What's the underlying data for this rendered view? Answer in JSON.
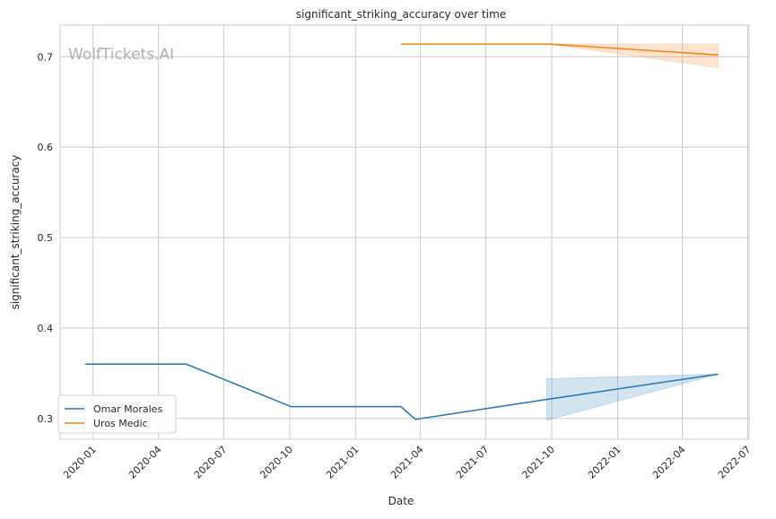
{
  "chart_data": {
    "type": "line",
    "title": "significant_striking_accuracy over time",
    "xlabel": "Date",
    "ylabel": "significant_striking_accuracy",
    "watermark": "WolfTickets.AI",
    "xlim": [
      "2019-11-16",
      "2022-07-03"
    ],
    "ylim": [
      0.277,
      0.735
    ],
    "x_ticks": [
      "2020-01",
      "2020-04",
      "2020-07",
      "2020-10",
      "2021-01",
      "2021-04",
      "2021-07",
      "2021-10",
      "2022-01",
      "2022-04",
      "2022-07"
    ],
    "y_ticks": [
      "0.3",
      "0.4",
      "0.5",
      "0.6",
      "0.7"
    ],
    "grid": true,
    "legend_position": "bottom-left",
    "series": [
      {
        "name": "Omar Morales",
        "color": "#1f77b4",
        "points": [
          {
            "x": "2019-12-21",
            "y": 0.36
          },
          {
            "x": "2020-05-10",
            "y": 0.36
          },
          {
            "x": "2020-10-03",
            "y": 0.313
          },
          {
            "x": "2021-03-05",
            "y": 0.313
          },
          {
            "x": "2021-03-25",
            "y": 0.299
          },
          {
            "x": "2021-09-24",
            "y": 0.321,
            "ci": [
              0.298,
              0.344
            ]
          },
          {
            "x": "2022-05-21",
            "y": 0.349,
            "ci": [
              0.349,
              0.349
            ]
          }
        ]
      },
      {
        "name": "Uros Medic",
        "color": "#ff7f0e",
        "points": [
          {
            "x": "2021-03-05",
            "y": 0.714
          },
          {
            "x": "2021-09-27",
            "y": 0.714,
            "ci": [
              0.714,
              0.714
            ]
          },
          {
            "x": "2022-05-21",
            "y": 0.702,
            "ci": [
              0.688,
              0.714
            ]
          }
        ]
      }
    ]
  }
}
